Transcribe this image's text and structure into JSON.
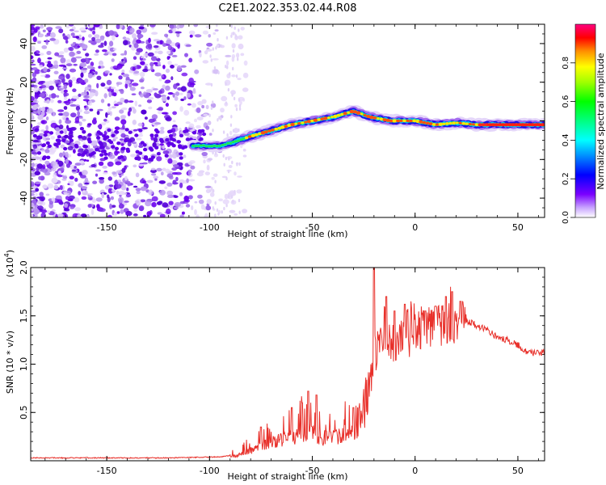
{
  "title": "C2E1.2022.353.02.44.R08",
  "colors": {
    "snr_line": "#e8302a",
    "axis": "#000000",
    "noise_purple": "#6a00ee",
    "noise_light": "#d9c6f5"
  },
  "chart_data": [
    {
      "type": "heatmap",
      "name": "spectrogram",
      "title": "C2E1.2022.353.02.44.R08",
      "xlabel": "Height of straight line (km)",
      "ylabel": "Frequency (Hz)",
      "xlim": [
        -187,
        63
      ],
      "ylim": [
        -50,
        50
      ],
      "x_ticks": [
        "-150",
        "-100",
        "-50",
        "0",
        "50"
      ],
      "y_ticks": [
        "-40",
        "-20",
        "0",
        "20",
        "40"
      ],
      "colorbar": {
        "label": "Normalized spectral amplitude",
        "range": [
          0,
          1
        ],
        "ticks": [
          "0.0",
          "0.2",
          "0.4",
          "0.6",
          "0.8"
        ]
      },
      "ridge": {
        "x": [
          -105,
          -95,
          -88,
          -80,
          -70,
          -60,
          -50,
          -40,
          -30,
          -22,
          -12,
          0,
          10,
          20,
          30,
          45,
          63
        ],
        "y": [
          -13,
          -13,
          -11,
          -8,
          -5,
          -2,
          0,
          2,
          5,
          2,
          0,
          0,
          -2,
          -1,
          -2,
          -2,
          -2
        ]
      }
    },
    {
      "type": "line",
      "name": "snr",
      "xlabel": "Height of straight line (km)",
      "ylabel": "SNR (10 * v/v)",
      "y_multiplier_label": "(x10",
      "y_multiplier_exp": "4",
      "y_multiplier_close": ")",
      "xlim": [
        -187,
        63
      ],
      "ylim": [
        0,
        2.0
      ],
      "x_ticks": [
        "-150",
        "-100",
        "-50",
        "0",
        "50"
      ],
      "y_ticks": [
        "0.5",
        "1.0",
        "1.5",
        "2.0"
      ],
      "envelope": {
        "x": [
          -187,
          -120,
          -95,
          -88,
          -80,
          -70,
          -60,
          -50,
          -45,
          -40,
          -35,
          -28,
          -24,
          -22,
          -20,
          -18,
          -15,
          -10,
          -5,
          0,
          5,
          10,
          15,
          20,
          25,
          30,
          35,
          40,
          45,
          50,
          55,
          60,
          63
        ],
        "y": [
          0.03,
          0.03,
          0.04,
          0.06,
          0.12,
          0.22,
          0.28,
          0.35,
          0.28,
          0.3,
          0.32,
          0.38,
          0.55,
          0.8,
          1.05,
          1.15,
          1.2,
          1.22,
          1.25,
          1.3,
          1.35,
          1.38,
          1.4,
          1.42,
          1.45,
          1.4,
          1.35,
          1.28,
          1.25,
          1.2,
          1.12,
          1.12,
          1.12
        ]
      },
      "peaks": {
        "x": [
          -75,
          -60,
          -55,
          -52,
          -48,
          -30,
          -20,
          -14,
          -10,
          -5,
          5,
          10,
          15,
          18,
          22
        ],
        "y": [
          0.35,
          0.55,
          0.6,
          0.72,
          0.68,
          0.55,
          2.0,
          1.7,
          1.55,
          1.62,
          1.55,
          1.6,
          1.7,
          1.75,
          1.65
        ]
      }
    }
  ]
}
